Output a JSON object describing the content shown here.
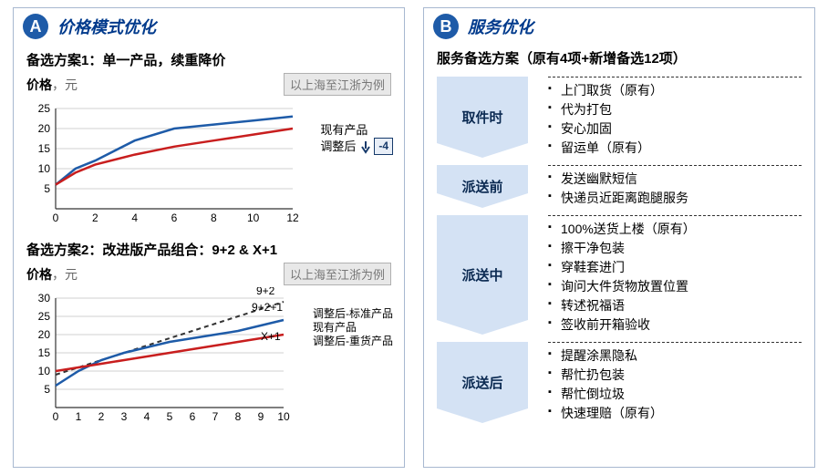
{
  "panelA": {
    "badge": "A",
    "title": "价格模式优化",
    "option1": {
      "heading": "备选方案1：单一产品，续重降价",
      "axis_label": "价格",
      "axis_unit": "，元",
      "example": "以上海至江浙为例",
      "legend_existing": "现有产品",
      "legend_adjusted": "调整后",
      "delta_label": "-4",
      "chart": {
        "type": "line",
        "xlim": [
          0,
          12
        ],
        "xtick_step": 2,
        "ylim": [
          0,
          25
        ],
        "yticks": [
          5,
          10,
          15,
          20,
          25
        ],
        "grid_color": "#d0d0d0",
        "axis_color": "#333333",
        "series": [
          {
            "name": "existing",
            "color": "#1e5ba8",
            "width": 2.5,
            "x": [
              0,
              1,
              2,
              4,
              6,
              8,
              10,
              12
            ],
            "y": [
              6,
              10,
              12,
              17,
              20,
              21,
              22,
              23
            ]
          },
          {
            "name": "adjusted",
            "color": "#c81e1e",
            "width": 2.5,
            "x": [
              0,
              1,
              2,
              4,
              6,
              8,
              10,
              12
            ],
            "y": [
              6,
              9,
              11,
              13.5,
              15.5,
              17,
              18.5,
              20
            ]
          }
        ]
      }
    },
    "option2": {
      "heading": "备选方案2：改进版产品组合：9+2 & X+1",
      "axis_label": "价格",
      "axis_unit": "，元",
      "example": "以上海至江浙为例",
      "line_labels": {
        "top": "9+2",
        "mid": "9+2+1",
        "bot": "X+1"
      },
      "legend_std": "调整后-标准产品",
      "legend_existing": "现有产品",
      "legend_heavy": "调整后-重货产品",
      "chart": {
        "type": "line",
        "xlim": [
          0,
          10
        ],
        "xtick_step": 1,
        "ylim": [
          0,
          30
        ],
        "yticks": [
          5,
          10,
          15,
          20,
          25,
          30
        ],
        "grid_color": "#d0d0d0",
        "axis_color": "#333333",
        "series": [
          {
            "name": "std",
            "color": "#333333",
            "width": 2,
            "dash": "5,4",
            "x": [
              0,
              1,
              2,
              3,
              4,
              5,
              6,
              7,
              8,
              9,
              10
            ],
            "y": [
              9,
              11,
              13,
              15,
              17,
              19,
              21,
              23,
              25,
              27,
              29
            ]
          },
          {
            "name": "existing",
            "color": "#1e5ba8",
            "width": 2.5,
            "x": [
              0,
              1,
              2,
              3,
              4,
              5,
              6,
              7,
              8,
              9,
              10
            ],
            "y": [
              6,
              10,
              13,
              15,
              16.5,
              18,
              19,
              20,
              21,
              22.5,
              24
            ]
          },
          {
            "name": "heavy",
            "color": "#c81e1e",
            "width": 2.5,
            "x": [
              0,
              1,
              2,
              3,
              4,
              5,
              6,
              7,
              8,
              9,
              10
            ],
            "y": [
              10,
              11,
              12,
              13,
              14,
              15,
              16,
              17,
              18,
              19,
              20
            ]
          }
        ]
      }
    }
  },
  "panelB": {
    "badge": "B",
    "title": "服务优化",
    "service_heading": "服务备选方案（原有4项+新增备选12项）",
    "stages": [
      {
        "name": "取件时",
        "items": [
          "上门取货（原有）",
          "代为打包",
          "安心加固",
          "留运单（原有）"
        ]
      },
      {
        "name": "派送前",
        "items": [
          "发送幽默短信",
          "快递员近距离跑腿服务"
        ]
      },
      {
        "name": "派送中",
        "items": [
          "100%送货上楼（原有）",
          "擦干净包装",
          "穿鞋套进门",
          "询问大件货物放置位置",
          "转述祝福语",
          "签收前开箱验收"
        ]
      },
      {
        "name": "派送后",
        "items": [
          "提醒涂黑隐私",
          "帮忙扔包装",
          "帮忙倒垃圾",
          "快速理赔（原有）"
        ]
      }
    ]
  },
  "colors": {
    "brand": "#1e5ba8",
    "brand_dark": "#003a8c",
    "red": "#c81e1e",
    "chevron_bg": "#d4e2f4",
    "border": "#a8b8d0"
  }
}
